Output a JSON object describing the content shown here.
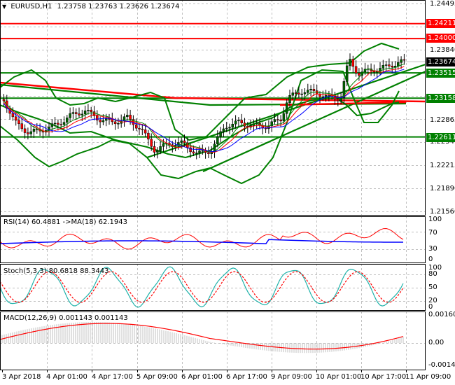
{
  "header": {
    "symbol_label": "EURUSD,H1",
    "ohlc": "1.23758 1.23763 1.23626 1.23674",
    "menu_icon": "triangle-down-icon"
  },
  "colors": {
    "support_resistance_green": "#008000",
    "resistance_red": "#ff0000",
    "bollinger_green": "#008000",
    "ma_blue": "#0000ff",
    "ma_red": "#ff0000",
    "ma_green": "#008000",
    "bull_candle": "#006400",
    "bear_candle": "#ff0000",
    "stoch_main": "#20b2aa",
    "stoch_signal": "#ff0000",
    "rsi_line": "#ff0000",
    "rsi_ma": "#0000ff",
    "macd_hist": "#c0c0c0",
    "macd_signal": "#ff0000",
    "grid": "#c0c0c0",
    "current_price_bg": "#000000"
  },
  "price_axis": {
    "ticks": [
      "1.24495",
      "1.23840",
      "1.22865",
      "1.22540",
      "1.22215",
      "1.21890",
      "1.21560"
    ],
    "tags": [
      {
        "value": "1.24211",
        "kind": "resistance"
      },
      {
        "value": "1.24000",
        "kind": "resistance"
      },
      {
        "value": "1.23674",
        "kind": "current"
      },
      {
        "value": "1.23515",
        "kind": "support"
      },
      {
        "value": "1.23158",
        "kind": "support"
      },
      {
        "value": "1.22611",
        "kind": "support"
      }
    ]
  },
  "rsi": {
    "title": "RSI(14) 60.4881  ->MA(18) 62.1943",
    "ticks": [
      "100",
      "70",
      "30",
      "0"
    ]
  },
  "stoch": {
    "title": "Stoch(5,3,3) 80.6818 88.3443",
    "ticks": [
      "100",
      "80",
      "50",
      "20",
      "0"
    ]
  },
  "macd": {
    "title": "MACD(12,26,9) 0.001143 0.001143",
    "ticks": [
      "0.001608",
      "0.00",
      "-0.001422"
    ]
  },
  "time_axis": {
    "ticks": [
      "3 Apr 2018",
      "4 Apr 01:00",
      "4 Apr 17:00",
      "5 Apr 09:00",
      "6 Apr 01:00",
      "6 Apr 17:00",
      "9 Apr 09:00",
      "10 Apr 01:00",
      "10 Apr 17:00",
      "11 Apr 09:00"
    ]
  },
  "chart_data": [
    {
      "type": "line",
      "title": "EURUSD,H1 1.23758 1.23763 1.23626 1.23674",
      "xlabel": "",
      "ylabel": "Price",
      "ylim": [
        1.2156,
        1.24495
      ],
      "x": [
        "3 Apr 2018",
        "4 Apr 01:00",
        "4 Apr 17:00",
        "5 Apr 09:00",
        "6 Apr 01:00",
        "6 Apr 17:00",
        "9 Apr 09:00",
        "10 Apr 01:00",
        "10 Apr 17:00",
        "11 Apr 09:00"
      ],
      "series": [
        {
          "name": "Close (approx)",
          "values": [
            1.23,
            1.2268,
            1.2285,
            1.2254,
            1.2245,
            1.2278,
            1.232,
            1.2325,
            1.235,
            1.23674
          ]
        }
      ],
      "horizontal_levels": [
        1.24211,
        1.24,
        1.23515,
        1.23158,
        1.22611
      ],
      "current_price": 1.23674,
      "ohlc": {
        "open": 1.23758,
        "high": 1.23763,
        "low": 1.23626,
        "close": 1.23674
      },
      "grid": true
    },
    {
      "type": "line",
      "title": "RSI(14) 60.4881 ->MA(18) 62.1943",
      "ylim": [
        0,
        100
      ],
      "y_ticks": [
        100,
        70,
        30,
        0
      ],
      "series": [
        {
          "name": "RSI(14)",
          "last": 60.4881
        },
        {
          "name": "MA(18)",
          "last": 62.1943
        }
      ]
    },
    {
      "type": "line",
      "title": "Stoch(5,3,3) 80.6818 88.3443",
      "ylim": [
        0,
        100
      ],
      "y_ticks": [
        100,
        80,
        50,
        20,
        0
      ],
      "series": [
        {
          "name": "%K",
          "last": 80.6818
        },
        {
          "name": "%D",
          "last": 88.3443
        }
      ]
    },
    {
      "type": "bar",
      "title": "MACD(12,26,9) 0.001143 0.001143",
      "ylim": [
        -0.001422,
        0.001608
      ],
      "y_ticks": [
        0.001608,
        0.0,
        -0.001422
      ],
      "series": [
        {
          "name": "MACD",
          "last": 0.001143
        },
        {
          "name": "Signal",
          "last": 0.001143
        }
      ]
    }
  ]
}
